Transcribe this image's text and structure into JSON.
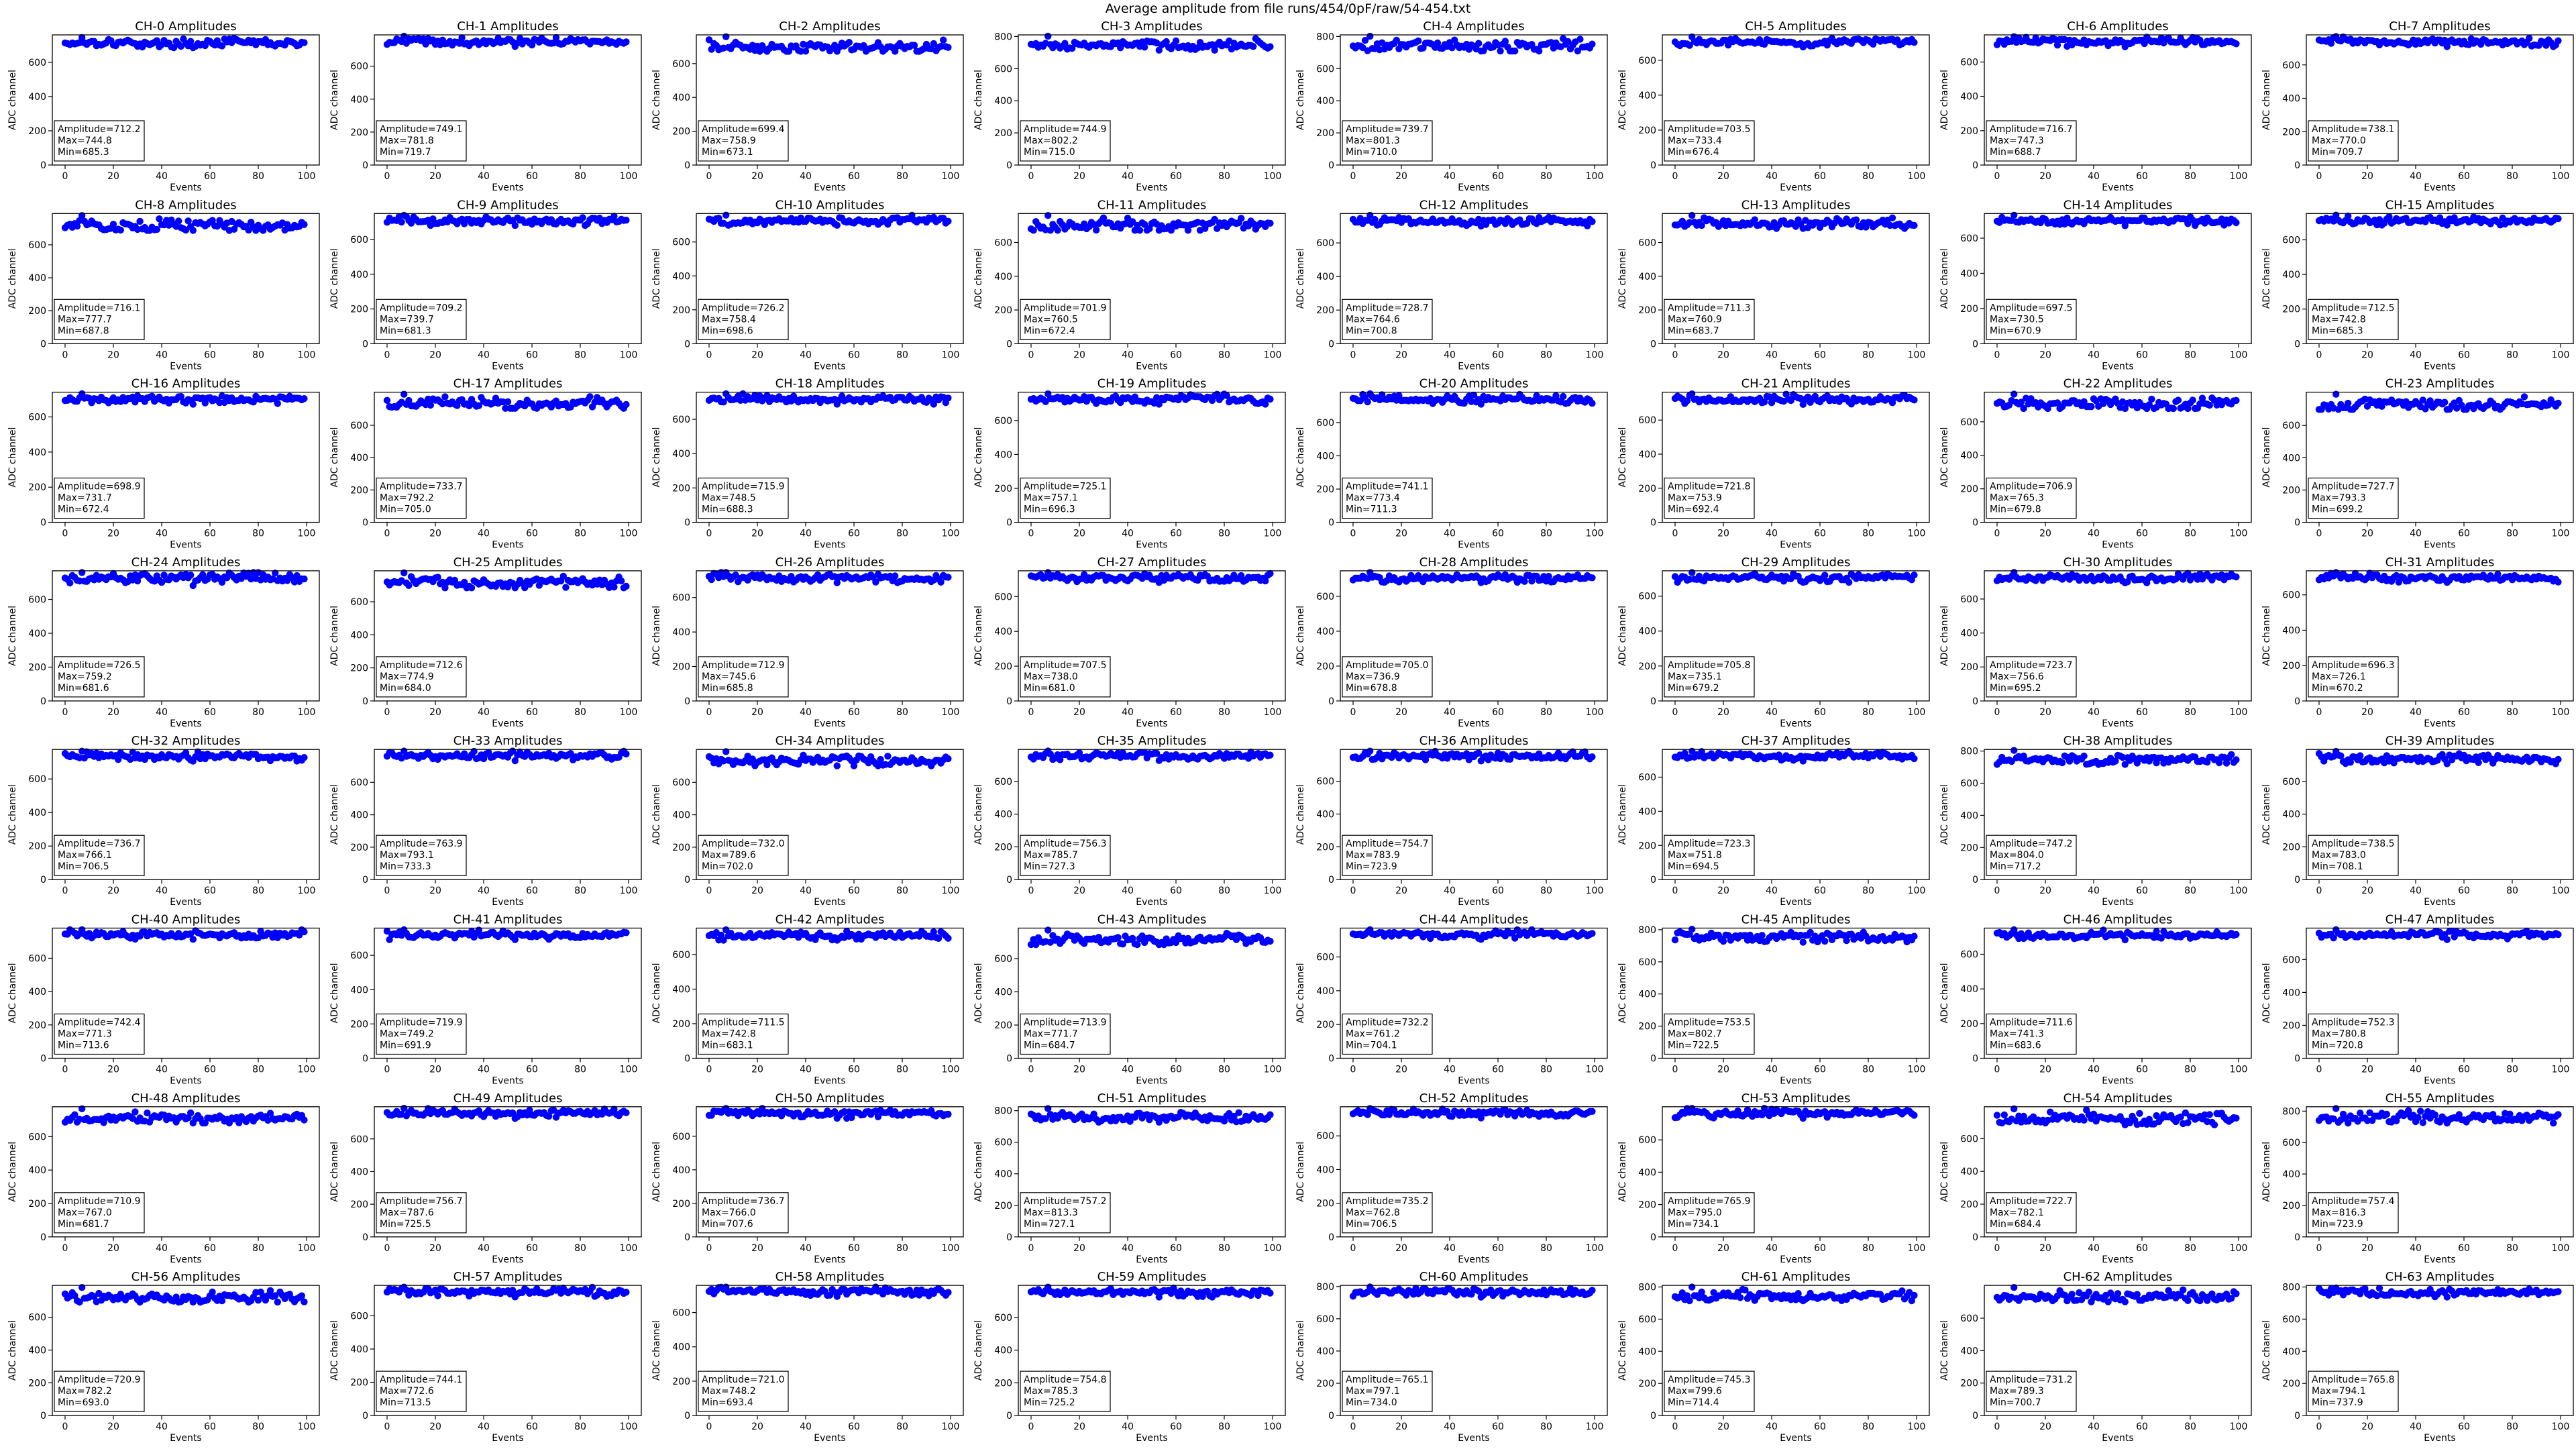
{
  "figure": {
    "suptitle": "Average amplitude from file runs/454/0pF/raw/54-454.txt"
  },
  "chart_data": {
    "type": "scatter",
    "layout": {
      "rows": 8,
      "cols": 8
    },
    "x": {
      "label": "Events",
      "range": [
        0,
        100
      ],
      "ticks": [
        0,
        20,
        40,
        60,
        80,
        100
      ],
      "n_points": 100
    },
    "y": {
      "label": "ADC channel",
      "ticks": [
        0,
        200,
        400,
        600
      ]
    },
    "marker_color": "#0000ff",
    "stat_labels": {
      "amplitude": "Amplitude=",
      "max": "Max=",
      "min": "Min="
    },
    "panels": [
      {
        "title": "CH-0 Amplitudes",
        "amplitude": "712.2",
        "max": "744.8",
        "min": "685.3",
        "ylim": [
          0,
          760
        ]
      },
      {
        "title": "CH-1 Amplitudes",
        "amplitude": "749.1",
        "max": "781.8",
        "min": "719.7",
        "ylim": [
          0,
          790
        ]
      },
      {
        "title": "CH-2 Amplitudes",
        "amplitude": "699.4",
        "max": "758.9",
        "min": "673.1",
        "ylim": [
          0,
          770
        ]
      },
      {
        "title": "CH-3 Amplitudes",
        "amplitude": "744.9",
        "max": "802.2",
        "min": "715.0",
        "ylim": [
          0,
          810
        ],
        "extra_ticks": [
          800
        ]
      },
      {
        "title": "CH-4 Amplitudes",
        "amplitude": "739.7",
        "max": "801.3",
        "min": "710.0",
        "ylim": [
          0,
          810
        ],
        "extra_ticks": [
          800
        ]
      },
      {
        "title": "CH-5 Amplitudes",
        "amplitude": "703.5",
        "max": "733.4",
        "min": "676.4",
        "ylim": [
          0,
          745
        ]
      },
      {
        "title": "CH-6 Amplitudes",
        "amplitude": "716.7",
        "max": "747.3",
        "min": "688.7",
        "ylim": [
          0,
          758
        ]
      },
      {
        "title": "CH-7 Amplitudes",
        "amplitude": "738.1",
        "max": "770.0",
        "min": "709.7",
        "ylim": [
          0,
          780
        ]
      },
      {
        "title": "CH-8 Amplitudes",
        "amplitude": "716.1",
        "max": "777.7",
        "min": "687.8",
        "ylim": [
          0,
          790
        ]
      },
      {
        "title": "CH-9 Amplitudes",
        "amplitude": "709.2",
        "max": "739.7",
        "min": "681.3",
        "ylim": [
          0,
          750
        ]
      },
      {
        "title": "CH-10 Amplitudes",
        "amplitude": "726.2",
        "max": "758.4",
        "min": "698.6",
        "ylim": [
          0,
          768
        ]
      },
      {
        "title": "CH-11 Amplitudes",
        "amplitude": "701.9",
        "max": "760.5",
        "min": "672.4",
        "ylim": [
          0,
          772
        ]
      },
      {
        "title": "CH-12 Amplitudes",
        "amplitude": "728.7",
        "max": "764.6",
        "min": "700.8",
        "ylim": [
          0,
          775
        ]
      },
      {
        "title": "CH-13 Amplitudes",
        "amplitude": "711.3",
        "max": "760.9",
        "min": "683.7",
        "ylim": [
          0,
          772
        ]
      },
      {
        "title": "CH-14 Amplitudes",
        "amplitude": "697.5",
        "max": "730.5",
        "min": "670.9",
        "ylim": [
          0,
          740
        ]
      },
      {
        "title": "CH-15 Amplitudes",
        "amplitude": "712.5",
        "max": "742.8",
        "min": "685.3",
        "ylim": [
          0,
          752
        ]
      },
      {
        "title": "CH-16 Amplitudes",
        "amplitude": "698.9",
        "max": "731.7",
        "min": "672.4",
        "ylim": [
          0,
          741
        ]
      },
      {
        "title": "CH-17 Amplitudes",
        "amplitude": "733.7",
        "max": "792.2",
        "min": "705.0",
        "ylim": [
          0,
          805
        ]
      },
      {
        "title": "CH-18 Amplitudes",
        "amplitude": "715.9",
        "max": "748.5",
        "min": "688.3",
        "ylim": [
          0,
          758
        ]
      },
      {
        "title": "CH-19 Amplitudes",
        "amplitude": "725.1",
        "max": "757.1",
        "min": "696.3",
        "ylim": [
          0,
          767
        ]
      },
      {
        "title": "CH-20 Amplitudes",
        "amplitude": "741.1",
        "max": "773.4",
        "min": "711.3",
        "ylim": [
          0,
          783
        ]
      },
      {
        "title": "CH-21 Amplitudes",
        "amplitude": "721.8",
        "max": "753.9",
        "min": "692.4",
        "ylim": [
          0,
          764
        ]
      },
      {
        "title": "CH-22 Amplitudes",
        "amplitude": "706.9",
        "max": "765.3",
        "min": "679.8",
        "ylim": [
          0,
          777
        ]
      },
      {
        "title": "CH-23 Amplitudes",
        "amplitude": "727.7",
        "max": "793.3",
        "min": "699.2",
        "ylim": [
          0,
          806
        ]
      },
      {
        "title": "CH-24 Amplitudes",
        "amplitude": "726.5",
        "max": "759.2",
        "min": "681.6",
        "ylim": [
          0,
          769
        ]
      },
      {
        "title": "CH-25 Amplitudes",
        "amplitude": "712.6",
        "max": "774.9",
        "min": "684.0",
        "ylim": [
          0,
          787
        ]
      },
      {
        "title": "CH-26 Amplitudes",
        "amplitude": "712.9",
        "max": "745.6",
        "min": "685.8",
        "ylim": [
          0,
          755
        ]
      },
      {
        "title": "CH-27 Amplitudes",
        "amplitude": "707.5",
        "max": "738.0",
        "min": "681.0",
        "ylim": [
          0,
          748
        ]
      },
      {
        "title": "CH-28 Amplitudes",
        "amplitude": "705.0",
        "max": "736.9",
        "min": "678.8",
        "ylim": [
          0,
          746
        ]
      },
      {
        "title": "CH-29 Amplitudes",
        "amplitude": "705.8",
        "max": "735.1",
        "min": "679.2",
        "ylim": [
          0,
          745
        ]
      },
      {
        "title": "CH-30 Amplitudes",
        "amplitude": "723.7",
        "max": "756.6",
        "min": "695.2",
        "ylim": [
          0,
          766
        ]
      },
      {
        "title": "CH-31 Amplitudes",
        "amplitude": "696.3",
        "max": "726.1",
        "min": "670.2",
        "ylim": [
          0,
          736
        ]
      },
      {
        "title": "CH-32 Amplitudes",
        "amplitude": "736.7",
        "max": "766.1",
        "min": "706.5",
        "ylim": [
          0,
          776
        ]
      },
      {
        "title": "CH-33 Amplitudes",
        "amplitude": "763.9",
        "max": "793.1",
        "min": "733.3",
        "ylim": [
          0,
          803
        ]
      },
      {
        "title": "CH-34 Amplitudes",
        "amplitude": "732.0",
        "max": "789.6",
        "min": "702.0",
        "ylim": [
          0,
          803
        ]
      },
      {
        "title": "CH-35 Amplitudes",
        "amplitude": "756.3",
        "max": "785.7",
        "min": "727.3",
        "ylim": [
          0,
          795
        ]
      },
      {
        "title": "CH-36 Amplitudes",
        "amplitude": "754.7",
        "max": "783.9",
        "min": "723.9",
        "ylim": [
          0,
          794
        ]
      },
      {
        "title": "CH-37 Amplitudes",
        "amplitude": "723.3",
        "max": "751.8",
        "min": "694.5",
        "ylim": [
          0,
          762
        ]
      },
      {
        "title": "CH-38 Amplitudes",
        "amplitude": "747.2",
        "max": "804.0",
        "min": "717.2",
        "ylim": [
          0,
          810
        ],
        "extra_ticks": [
          800
        ]
      },
      {
        "title": "CH-39 Amplitudes",
        "amplitude": "738.5",
        "max": "783.0",
        "min": "708.1",
        "ylim": [
          0,
          795
        ]
      },
      {
        "title": "CH-40 Amplitudes",
        "amplitude": "742.4",
        "max": "771.3",
        "min": "713.6",
        "ylim": [
          0,
          781
        ]
      },
      {
        "title": "CH-41 Amplitudes",
        "amplitude": "719.9",
        "max": "749.2",
        "min": "691.9",
        "ylim": [
          0,
          759
        ]
      },
      {
        "title": "CH-42 Amplitudes",
        "amplitude": "711.5",
        "max": "742.8",
        "min": "683.1",
        "ylim": [
          0,
          753
        ]
      },
      {
        "title": "CH-43 Amplitudes",
        "amplitude": "713.9",
        "max": "771.7",
        "min": "684.7",
        "ylim": [
          0,
          784
        ]
      },
      {
        "title": "CH-44 Amplitudes",
        "amplitude": "732.2",
        "max": "761.2",
        "min": "704.1",
        "ylim": [
          0,
          771
        ]
      },
      {
        "title": "CH-45 Amplitudes",
        "amplitude": "753.5",
        "max": "802.7",
        "min": "722.5",
        "ylim": [
          0,
          810
        ],
        "extra_ticks": [
          800
        ]
      },
      {
        "title": "CH-46 Amplitudes",
        "amplitude": "711.6",
        "max": "741.3",
        "min": "683.6",
        "ylim": [
          0,
          751
        ]
      },
      {
        "title": "CH-47 Amplitudes",
        "amplitude": "752.3",
        "max": "780.8",
        "min": "720.8",
        "ylim": [
          0,
          791
        ]
      },
      {
        "title": "CH-48 Amplitudes",
        "amplitude": "710.9",
        "max": "767.0",
        "min": "681.7",
        "ylim": [
          0,
          779
        ]
      },
      {
        "title": "CH-49 Amplitudes",
        "amplitude": "756.7",
        "max": "787.6",
        "min": "725.5",
        "ylim": [
          0,
          797
        ]
      },
      {
        "title": "CH-50 Amplitudes",
        "amplitude": "736.7",
        "max": "766.0",
        "min": "707.6",
        "ylim": [
          0,
          776
        ]
      },
      {
        "title": "CH-51 Amplitudes",
        "amplitude": "757.2",
        "max": "813.3",
        "min": "727.1",
        "ylim": [
          0,
          825
        ],
        "extra_ticks": [
          800
        ]
      },
      {
        "title": "CH-52 Amplitudes",
        "amplitude": "735.2",
        "max": "762.8",
        "min": "706.5",
        "ylim": [
          0,
          773
        ]
      },
      {
        "title": "CH-53 Amplitudes",
        "amplitude": "765.9",
        "max": "795.0",
        "min": "734.1",
        "ylim": [
          0,
          805
        ]
      },
      {
        "title": "CH-54 Amplitudes",
        "amplitude": "722.7",
        "max": "782.1",
        "min": "684.4",
        "ylim": [
          0,
          795
        ]
      },
      {
        "title": "CH-55 Amplitudes",
        "amplitude": "757.4",
        "max": "816.3",
        "min": "723.9",
        "ylim": [
          0,
          828
        ],
        "extra_ticks": [
          800
        ]
      },
      {
        "title": "CH-56 Amplitudes",
        "amplitude": "720.9",
        "max": "782.2",
        "min": "693.0",
        "ylim": [
          0,
          795
        ]
      },
      {
        "title": "CH-57 Amplitudes",
        "amplitude": "744.1",
        "max": "772.6",
        "min": "713.5",
        "ylim": [
          0,
          783
        ]
      },
      {
        "title": "CH-58 Amplitudes",
        "amplitude": "721.0",
        "max": "748.2",
        "min": "693.4",
        "ylim": [
          0,
          758
        ]
      },
      {
        "title": "CH-59 Amplitudes",
        "amplitude": "754.8",
        "max": "785.3",
        "min": "725.2",
        "ylim": [
          0,
          796
        ]
      },
      {
        "title": "CH-60 Amplitudes",
        "amplitude": "765.1",
        "max": "797.1",
        "min": "734.0",
        "ylim": [
          0,
          807
        ],
        "extra_ticks": [
          800
        ]
      },
      {
        "title": "CH-61 Amplitudes",
        "amplitude": "745.3",
        "max": "799.6",
        "min": "714.4",
        "ylim": [
          0,
          810
        ],
        "extra_ticks": [
          800
        ]
      },
      {
        "title": "CH-62 Amplitudes",
        "amplitude": "731.2",
        "max": "789.3",
        "min": "700.7",
        "ylim": [
          0,
          802
        ]
      },
      {
        "title": "CH-63 Amplitudes",
        "amplitude": "765.8",
        "max": "794.1",
        "min": "737.9",
        "ylim": [
          0,
          810
        ],
        "extra_ticks": [
          800
        ]
      }
    ]
  }
}
